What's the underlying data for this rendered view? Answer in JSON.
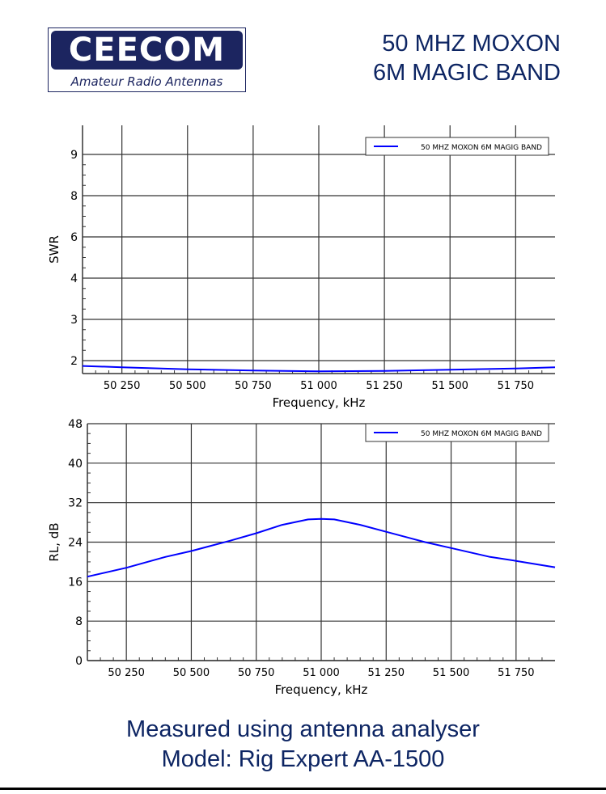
{
  "logo": {
    "brand": "CEECOM",
    "tagline": "Amateur Radio Antennas"
  },
  "header": {
    "title_line1": "50 MHZ MOXON",
    "title_line2": "6M MAGIC BAND"
  },
  "footer": {
    "line1": "Measured using antenna analyser",
    "line2": "Model: Rig Expert AA-1500"
  },
  "colors": {
    "brand": "#1c2560",
    "text_blue": "#0d2563",
    "series": "#0000ff",
    "grid": "#000000"
  },
  "chart_data": [
    {
      "type": "line",
      "title": "",
      "xlabel": "Frequency, kHz",
      "ylabel": "SWR",
      "xlim": [
        50100,
        51900
      ],
      "ylim_ticks": [
        "2",
        "3",
        "4",
        "6",
        "8",
        "9"
      ],
      "x_ticks": [
        "50 250",
        "50 500",
        "50 750",
        "51 000",
        "51 250",
        "51 500",
        "51 750"
      ],
      "legend": {
        "entries": [
          "50 MHZ MOXON 6M MAGIG BAND"
        ],
        "position": "top-right"
      },
      "grid": true,
      "series": [
        {
          "name": "50 MHZ MOXON 6M MAGIG BAND",
          "x": [
            50100,
            50250,
            50500,
            50750,
            51000,
            51250,
            51500,
            51750,
            51900
          ],
          "y": [
            1.87,
            1.84,
            1.79,
            1.76,
            1.74,
            1.75,
            1.78,
            1.81,
            1.84
          ]
        }
      ]
    },
    {
      "type": "line",
      "title": "",
      "xlabel": "Frequency, kHz",
      "ylabel": "RL, dB",
      "xlim": [
        50100,
        51900
      ],
      "ylim": [
        0,
        48
      ],
      "y_ticks": [
        "0",
        "8",
        "16",
        "24",
        "32",
        "40",
        "48"
      ],
      "x_ticks": [
        "50 250",
        "50 500",
        "50 750",
        "51 000",
        "51 250",
        "51 500",
        "51 750"
      ],
      "legend": {
        "entries": [
          "50 MHZ MOXON 6M MAGIG BAND"
        ],
        "position": "top-right"
      },
      "grid": true,
      "series": [
        {
          "name": "50 MHZ MOXON 6M MAGIG BAND",
          "x": [
            50100,
            50250,
            50400,
            50500,
            50650,
            50750,
            50850,
            50950,
            51000,
            51050,
            51150,
            51250,
            51400,
            51500,
            51650,
            51750,
            51900
          ],
          "y": [
            17.0,
            18.8,
            21.0,
            22.2,
            24.3,
            25.8,
            27.5,
            28.6,
            28.7,
            28.6,
            27.5,
            26.1,
            24.0,
            22.8,
            21.0,
            20.2,
            18.9
          ]
        }
      ]
    }
  ]
}
